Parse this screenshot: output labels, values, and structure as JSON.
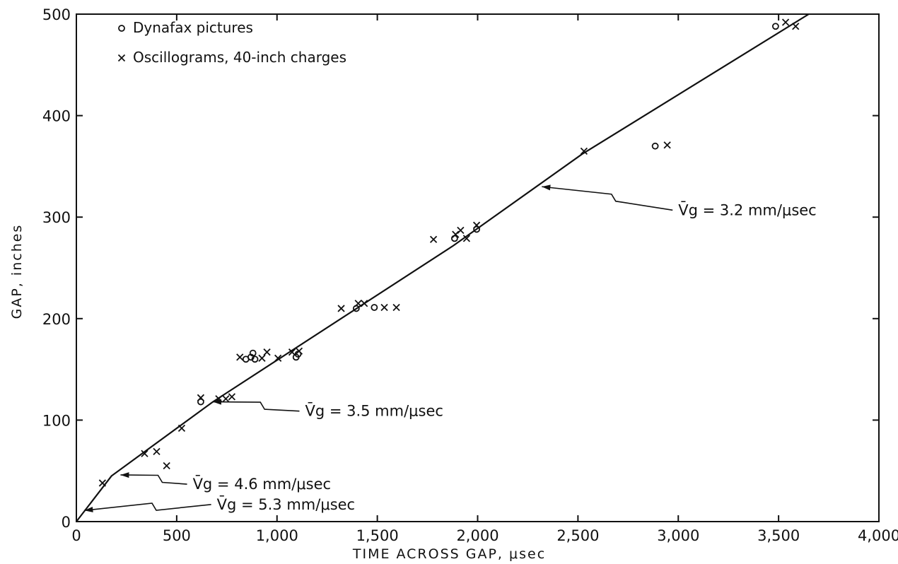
{
  "chart_data": {
    "type": "scatter",
    "xlabel": "TIME ACROSS GAP, μsec",
    "ylabel": "GAP, inches",
    "xlim": [
      0,
      4000
    ],
    "ylim": [
      0,
      500
    ],
    "x_ticks": [
      0,
      500,
      1000,
      1500,
      2000,
      2500,
      3000,
      3500,
      4000
    ],
    "x_tick_labels": [
      "0",
      "500",
      "1,000",
      "1,500",
      "2,000",
      "2,500",
      "3,000",
      "3,500",
      "4,000"
    ],
    "y_ticks": [
      0,
      100,
      200,
      300,
      400,
      500
    ],
    "y_tick_labels": [
      "0",
      "100",
      "200",
      "300",
      "400",
      "500"
    ],
    "grid": false,
    "legend_position": "top-left",
    "legend": [
      {
        "marker": "o",
        "label": "Dynafax pictures"
      },
      {
        "marker": "x",
        "label": "Oscillograms, 40-inch charges"
      }
    ],
    "series": [
      {
        "name": "Dynafax pictures",
        "marker": "o",
        "points": [
          [
            620,
            118
          ],
          [
            845,
            160
          ],
          [
            870,
            162
          ],
          [
            880,
            166
          ],
          [
            890,
            160
          ],
          [
            1095,
            162
          ],
          [
            1105,
            165
          ],
          [
            1395,
            210
          ],
          [
            1485,
            211
          ],
          [
            1885,
            279
          ],
          [
            1995,
            288
          ],
          [
            2885,
            370
          ],
          [
            3485,
            488
          ]
        ]
      },
      {
        "name": "Oscillograms, 40-inch charges",
        "marker": "x",
        "points": [
          [
            130,
            38
          ],
          [
            340,
            67
          ],
          [
            400,
            69
          ],
          [
            450,
            55
          ],
          [
            525,
            92
          ],
          [
            620,
            122
          ],
          [
            710,
            121
          ],
          [
            745,
            121
          ],
          [
            775,
            123
          ],
          [
            815,
            162
          ],
          [
            925,
            161
          ],
          [
            950,
            167
          ],
          [
            1005,
            161
          ],
          [
            1075,
            167
          ],
          [
            1110,
            168
          ],
          [
            1320,
            210
          ],
          [
            1405,
            215
          ],
          [
            1435,
            215
          ],
          [
            1535,
            211
          ],
          [
            1595,
            211
          ],
          [
            1780,
            278
          ],
          [
            1890,
            283
          ],
          [
            1915,
            287
          ],
          [
            1945,
            279
          ],
          [
            1995,
            292
          ],
          [
            2530,
            365
          ],
          [
            2945,
            371
          ],
          [
            3535,
            492
          ],
          [
            3585,
            488
          ]
        ]
      }
    ],
    "fit_line": [
      [
        0,
        0
      ],
      [
        175,
        45
      ],
      [
        680,
        118
      ],
      [
        1880,
        272
      ],
      [
        2520,
        362
      ],
      [
        3650,
        500
      ]
    ],
    "annotations": [
      {
        "text": "V̄g = 3.2 mm/μsec",
        "target": [
          2320,
          330
        ],
        "label_at": [
          3000,
          302
        ]
      },
      {
        "text": "V̄g = 3.5 mm/μsec",
        "target": [
          680,
          118
        ],
        "label_at": [
          1140,
          104
        ]
      },
      {
        "text": "V̄g = 4.6 mm/μsec",
        "target": [
          220,
          46
        ],
        "label_at": [
          580,
          32
        ]
      },
      {
        "text": "V̄g = 5.3 mm/μsec",
        "target": [
          40,
          11
        ],
        "label_at": [
          700,
          12
        ]
      }
    ]
  }
}
